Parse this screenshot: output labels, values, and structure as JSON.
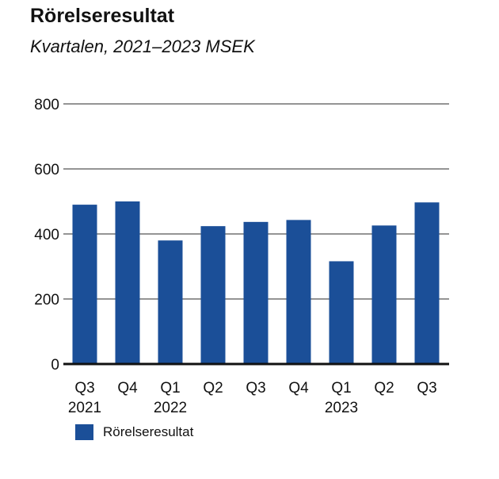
{
  "chart_data": {
    "type": "bar",
    "title": "Rörelseresultat",
    "subtitle": "Kvartalen, 2021–2023 MSEK",
    "categories": [
      "Q3 2021",
      "Q4 2021",
      "Q1 2022",
      "Q2 2022",
      "Q3 2022",
      "Q4 2022",
      "Q1 2023",
      "Q2 2023",
      "Q3 2023"
    ],
    "tick_labels": [
      [
        "Q3",
        "2021"
      ],
      [
        "Q4",
        ""
      ],
      [
        "Q1",
        "2022"
      ],
      [
        "Q2",
        ""
      ],
      [
        "Q3",
        ""
      ],
      [
        "Q4",
        ""
      ],
      [
        "Q1",
        "2023"
      ],
      [
        "Q2",
        ""
      ],
      [
        "Q3",
        ""
      ]
    ],
    "series": [
      {
        "name": "Rörelseresultat",
        "values": [
          490,
          500,
          380,
          424,
          437,
          443,
          316,
          426,
          497
        ],
        "color": "#1b4f98"
      }
    ],
    "yticks": [
      0,
      200,
      400,
      600,
      800
    ],
    "ylim": [
      0,
      800
    ],
    "xlabel": "",
    "ylabel": "",
    "grid": true,
    "legend": "bottom-left"
  }
}
